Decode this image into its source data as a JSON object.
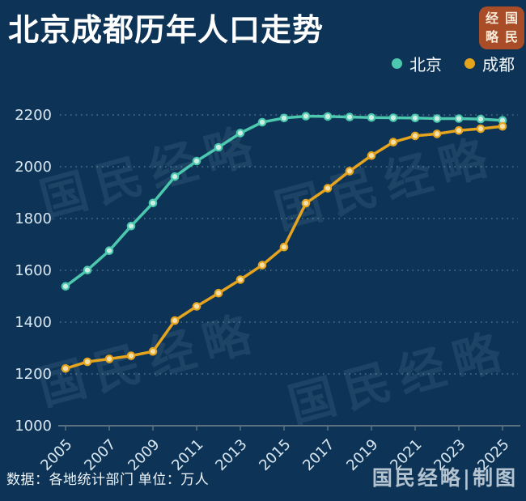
{
  "header": {
    "title": "北京成都历年人口走势",
    "logo_badge": {
      "chars": [
        "经",
        "国",
        "略",
        "民"
      ],
      "bg_color": "#a84d28"
    }
  },
  "legend": [
    {
      "label": "北京",
      "color": "#4cc8ae"
    },
    {
      "label": "成都",
      "color": "#e6a41e"
    }
  ],
  "chart_data": {
    "type": "line",
    "x": [
      2005,
      2006,
      2007,
      2008,
      2009,
      2010,
      2011,
      2012,
      2013,
      2014,
      2015,
      2016,
      2017,
      2018,
      2019,
      2020,
      2021,
      2022,
      2023,
      2024,
      2025
    ],
    "x_tick_labels": [
      "2005",
      "2007",
      "2009",
      "2011",
      "2013",
      "2015",
      "2017",
      "2019",
      "2021",
      "2023",
      "2025"
    ],
    "series": [
      {
        "name": "北京",
        "color": "#4cc8ae",
        "marker_fill": "#cdeee4",
        "values": [
          1538,
          1601,
          1676,
          1771,
          1860,
          1962,
          2022,
          2075,
          2130,
          2172,
          2188,
          2195,
          2194,
          2192,
          2190,
          2189,
          2188,
          2186,
          2186,
          2184,
          2179
        ]
      },
      {
        "name": "成都",
        "color": "#e6a41e",
        "marker_fill": "#f4dfa9",
        "values": [
          1221,
          1247,
          1258,
          1270,
          1287,
          1406,
          1461,
          1512,
          1564,
          1620,
          1690,
          1859,
          1917,
          1983,
          2043,
          2095,
          2119,
          2127,
          2140,
          2147,
          2156
        ]
      }
    ],
    "y_ticks": [
      1000,
      1200,
      1400,
      1600,
      1800,
      2000,
      2200
    ],
    "ylim": [
      1000,
      2200
    ],
    "xlim": [
      2005,
      2025
    ],
    "unit": "万人",
    "grid": "dotted horizontal",
    "legend_position": "top-right",
    "title": "北京成都历年人口走势"
  },
  "footer": {
    "source_note": "数据：各地统计部门 单位：万人",
    "credit": "国民经略|制图"
  },
  "watermark": {
    "text": "国民经略"
  }
}
